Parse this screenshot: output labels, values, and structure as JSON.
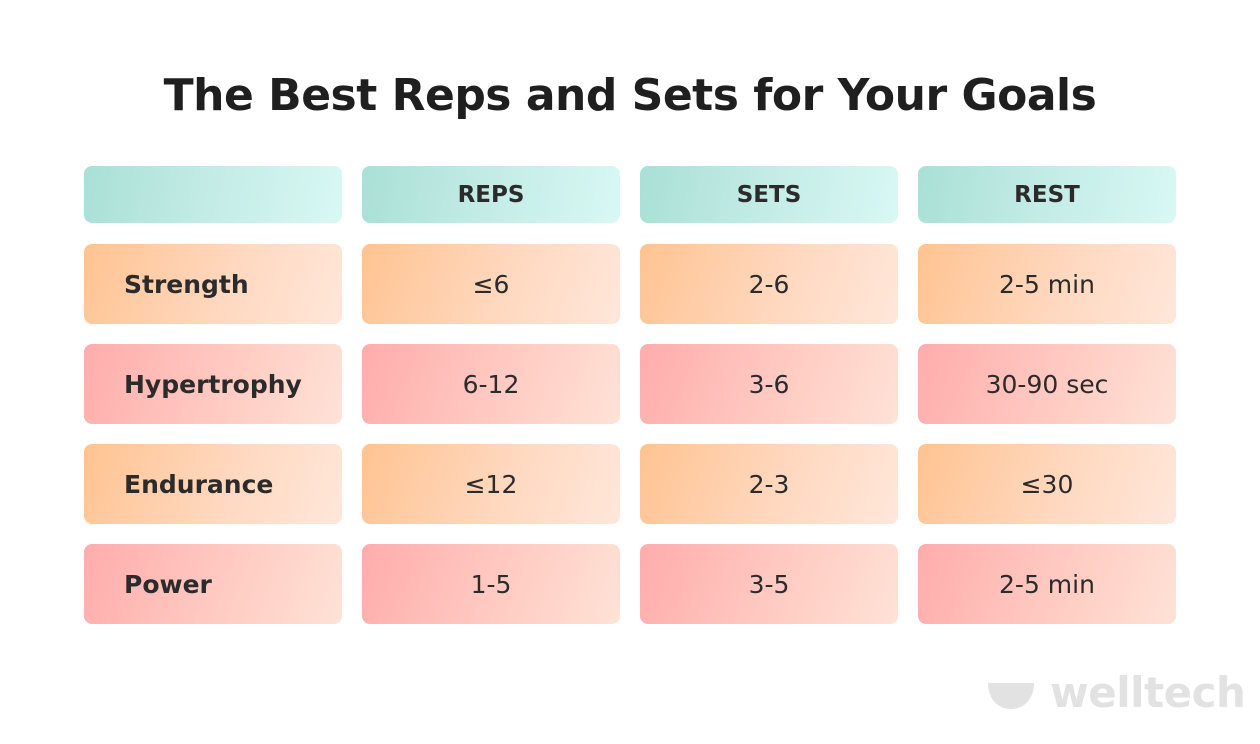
{
  "title": "The Best Reps and Sets for Your Goals",
  "table": {
    "headers": [
      "",
      "REPS",
      "SETS",
      "REST"
    ],
    "rows": [
      {
        "goal": "Strength",
        "reps": "≤6",
        "sets": "2-6",
        "rest": "2-5 min",
        "tone": "orange"
      },
      {
        "goal": "Hypertrophy",
        "reps": "6-12",
        "sets": "3-6",
        "rest": "30-90 sec",
        "tone": "pink"
      },
      {
        "goal": "Endurance",
        "reps": "≤12",
        "sets": "2-3",
        "rest": "≤30",
        "tone": "orange"
      },
      {
        "goal": "Power",
        "reps": "1-5",
        "sets": "3-5",
        "rest": "2-5 min",
        "tone": "pink"
      }
    ]
  },
  "brand": {
    "name": "welltech",
    "logo_icon": "bowl-icon"
  },
  "colors": {
    "header_bg": "#c4ece6",
    "orange_bg": "#ffd0ad",
    "pink_bg": "#ffbcb6",
    "title_text": "#1f1f1f",
    "brand_text": "#e2e2e2"
  }
}
